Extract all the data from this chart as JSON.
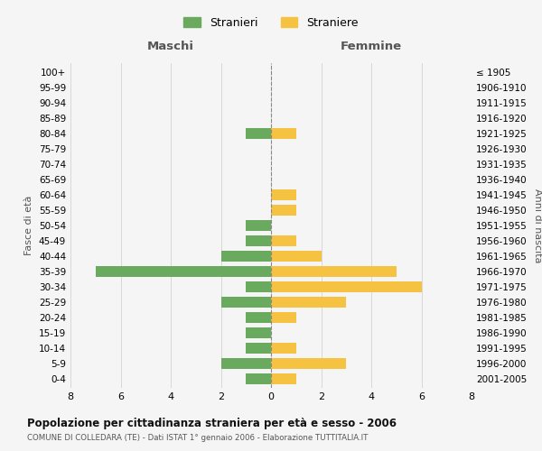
{
  "age_groups": [
    "0-4",
    "5-9",
    "10-14",
    "15-19",
    "20-24",
    "25-29",
    "30-34",
    "35-39",
    "40-44",
    "45-49",
    "50-54",
    "55-59",
    "60-64",
    "65-69",
    "70-74",
    "75-79",
    "80-84",
    "85-89",
    "90-94",
    "95-99",
    "100+"
  ],
  "birth_years": [
    "2001-2005",
    "1996-2000",
    "1991-1995",
    "1986-1990",
    "1981-1985",
    "1976-1980",
    "1971-1975",
    "1966-1970",
    "1961-1965",
    "1956-1960",
    "1951-1955",
    "1946-1950",
    "1941-1945",
    "1936-1940",
    "1931-1935",
    "1926-1930",
    "1921-1925",
    "1916-1920",
    "1911-1915",
    "1906-1910",
    "≤ 1905"
  ],
  "maschi": [
    1,
    2,
    1,
    1,
    1,
    2,
    1,
    7,
    2,
    1,
    1,
    0,
    0,
    0,
    0,
    0,
    1,
    0,
    0,
    0,
    0
  ],
  "femmine": [
    1,
    3,
    1,
    0,
    1,
    3,
    6,
    5,
    2,
    1,
    0,
    1,
    1,
    0,
    0,
    0,
    1,
    0,
    0,
    0,
    0
  ],
  "color_maschi": "#6aaa5e",
  "color_femmine": "#f5c242",
  "title": "Popolazione per cittadinanza straniera per età e sesso - 2006",
  "subtitle": "COMUNE DI COLLEDARA (TE) - Dati ISTAT 1° gennaio 2006 - Elaborazione TUTTITALIA.IT",
  "ylabel_left": "Fasce di età",
  "ylabel_right": "Anni di nascita",
  "xlabel_left": "Maschi",
  "xlabel_right": "Femmine",
  "legend_maschi": "Stranieri",
  "legend_femmine": "Straniere",
  "xlim": 8,
  "background_color": "#f5f5f5",
  "grid_color": "#cccccc"
}
